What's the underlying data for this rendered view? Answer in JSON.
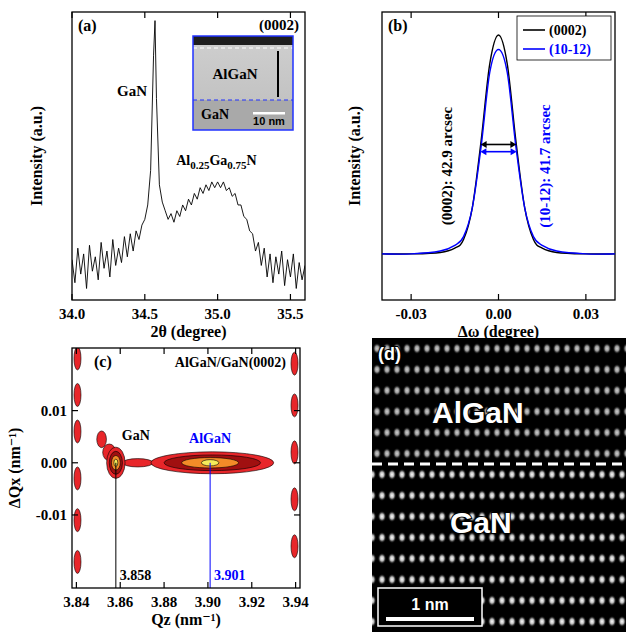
{
  "chart_data": [
    {
      "type": "line",
      "panel_label": "(a)",
      "title": "(0002)",
      "x_label": "2θ (degree)",
      "y_label": "Intensity (a.u.)",
      "xlim": [
        34.0,
        35.6
      ],
      "xticks": [
        {
          "value": 34,
          "label": "34.0"
        },
        34.5,
        {
          "value": 35,
          "label": "35.0"
        },
        35.5
      ],
      "ylim": [
        0,
        100
      ],
      "tick_labels": "x",
      "color": "#000000",
      "x": [
        34.0,
        34.02,
        34.04,
        34.06,
        34.08,
        34.1,
        34.12,
        34.14,
        34.16,
        34.18,
        34.2,
        34.22,
        34.24,
        34.26,
        34.28,
        34.3,
        34.32,
        34.34,
        34.36,
        34.38,
        34.4,
        34.42,
        34.44,
        34.46,
        34.48,
        34.5,
        34.52,
        34.54,
        34.56,
        34.57,
        34.58,
        34.6,
        34.62,
        34.64,
        34.66,
        34.68,
        34.7,
        34.72,
        34.74,
        34.76,
        34.78,
        34.8,
        34.82,
        34.84,
        34.86,
        34.88,
        34.9,
        34.92,
        34.94,
        34.96,
        34.98,
        35.0,
        35.02,
        35.04,
        35.06,
        35.08,
        35.1,
        35.12,
        35.14,
        35.16,
        35.18,
        35.2,
        35.22,
        35.24,
        35.26,
        35.28,
        35.3,
        35.32,
        35.34,
        35.36,
        35.38,
        35.4,
        35.42,
        35.44,
        35.46,
        35.48,
        35.5,
        35.52,
        35.54,
        35.56,
        35.58,
        35.6
      ],
      "values": [
        14,
        6,
        18,
        9,
        16,
        4,
        19,
        10,
        15,
        7,
        20,
        11,
        17,
        8,
        21,
        12,
        18,
        13,
        22,
        15,
        23,
        17,
        24,
        21,
        26,
        28,
        33,
        45,
        85,
        97,
        70,
        40,
        34,
        31,
        28,
        30,
        27,
        31,
        29,
        33,
        31,
        35,
        33,
        37,
        35,
        39,
        37,
        40,
        38,
        41,
        39,
        41,
        39,
        41,
        38,
        39,
        36,
        37,
        33,
        33,
        29,
        28,
        24,
        23,
        17,
        20,
        12,
        18,
        8,
        16,
        6,
        15,
        9,
        17,
        5,
        14,
        8,
        16,
        4,
        13,
        7,
        12
      ],
      "peak_labels": [
        "GaN",
        "Al0.25Ga0.75N"
      ],
      "inset": {
        "labels": [
          "AlGaN",
          "GaN"
        ],
        "scale_bar": "10 nm"
      }
    },
    {
      "type": "line",
      "panel_label": "(b)",
      "x_label": "Δω (degree)",
      "y_label": "Intensity (a.u.)",
      "xlim": [
        -0.04,
        0.04
      ],
      "xticks": [
        -0.03,
        {
          "value": 0,
          "label": "0.00"
        },
        0.03
      ],
      "ylim": [
        0,
        100
      ],
      "tick_labels": "x",
      "legend": "upper right",
      "x": [
        -0.04,
        -0.03,
        -0.02,
        -0.015,
        -0.012,
        -0.009,
        -0.006,
        -0.003,
        0,
        0.003,
        0.006,
        0.009,
        0.012,
        0.015,
        0.02,
        0.03,
        0.04
      ],
      "series": [
        {
          "name": "(0002)",
          "color": "#000000",
          "values": [
            16,
            16,
            16.5,
            18,
            21,
            32,
            55,
            82,
            92,
            82,
            55,
            32,
            21,
            18,
            16.5,
            16,
            16
          ]
        },
        {
          "name": "(10-12)",
          "color": "#0000ff",
          "values": [
            16,
            16,
            17,
            19,
            22,
            32,
            53,
            79,
            87,
            79,
            53,
            32,
            22,
            19,
            17,
            16,
            16
          ]
        }
      ],
      "fwhm_labels": [
        "(0002): 42.9 arcsec",
        "(10-12): 41.7 arcsec"
      ]
    },
    {
      "type": "contour",
      "panel_label": "(c)",
      "title": "AlGaN/GaN(0002)",
      "x_label": "Qz (nm⁻¹)",
      "y_label": "ΔQx (nm⁻¹)",
      "xlim": [
        3.838,
        3.942
      ],
      "xticks": [
        3.84,
        3.86,
        3.88,
        {
          "value": 3.9,
          "label": "3.90"
        },
        3.92,
        3.94
      ],
      "ylim": [
        -0.024,
        0.022
      ],
      "yticks": [
        -0.01,
        {
          "value": 0,
          "label": "0.00"
        },
        0.01
      ],
      "colors": [
        "#e8262a",
        "#a01010",
        "#f28c28",
        "#f6ec5a"
      ],
      "contours": [
        {
          "x": 3.8515,
          "y": 0.0045,
          "rx": 0.0022,
          "ry": 0.0016,
          "level": 0
        },
        {
          "x": 3.855,
          "y": 0.002,
          "rx": 0.003,
          "ry": 0.0016,
          "level": 0
        },
        {
          "x": 3.868,
          "y": 0,
          "rx": 0.007,
          "ry": 0.0008,
          "level": 0
        },
        {
          "x": 3.858,
          "y": 0,
          "rx": 0.0042,
          "ry": 0.003,
          "level": 0
        },
        {
          "x": 3.858,
          "y": 0,
          "rx": 0.003,
          "ry": 0.0022,
          "level": 1
        },
        {
          "x": 3.858,
          "y": 0,
          "rx": 0.002,
          "ry": 0.0014,
          "level": 2
        },
        {
          "x": 3.858,
          "y": 0,
          "rx": 0.0009,
          "ry": 0.0007,
          "level": 3
        },
        {
          "x": 3.902,
          "y": 0,
          "rx": 0.028,
          "ry": 0.0021,
          "level": 0
        },
        {
          "x": 3.902,
          "y": 0,
          "rx": 0.022,
          "ry": 0.0015,
          "level": 1
        },
        {
          "x": 3.901,
          "y": 0,
          "rx": 0.013,
          "ry": 0.001,
          "level": 2
        },
        {
          "x": 3.901,
          "y": 0,
          "rx": 0.004,
          "ry": 0.0006,
          "level": 3
        },
        {
          "x": 3.8405,
          "y": 0.02,
          "rx": 0.0016,
          "ry": 0.0022,
          "level": 0
        },
        {
          "x": 3.8405,
          "y": 0.013,
          "rx": 0.0016,
          "ry": 0.0022,
          "level": 0
        },
        {
          "x": 3.8405,
          "y": 0.006,
          "rx": 0.0016,
          "ry": 0.0022,
          "level": 0
        },
        {
          "x": 3.8405,
          "y": -0.003,
          "rx": 0.0016,
          "ry": 0.0022,
          "level": 0
        },
        {
          "x": 3.8405,
          "y": -0.011,
          "rx": 0.0016,
          "ry": 0.0022,
          "level": 0
        },
        {
          "x": 3.8405,
          "y": -0.019,
          "rx": 0.0016,
          "ry": 0.0022,
          "level": 0
        },
        {
          "x": 3.9395,
          "y": 0.019,
          "rx": 0.0016,
          "ry": 0.0022,
          "level": 0
        },
        {
          "x": 3.9395,
          "y": 0.011,
          "rx": 0.0016,
          "ry": 0.0022,
          "level": 0
        },
        {
          "x": 3.9395,
          "y": 0.002,
          "rx": 0.0016,
          "ry": 0.0022,
          "level": 0
        },
        {
          "x": 3.9395,
          "y": -0.007,
          "rx": 0.0016,
          "ry": 0.0022,
          "level": 0
        },
        {
          "x": 3.9395,
          "y": -0.016,
          "rx": 0.0016,
          "ry": 0.0022,
          "level": 0
        }
      ],
      "reference_lines": [
        3.858,
        3.901
      ],
      "reference_colors": [
        "#000000",
        "#0000ff"
      ],
      "peak_labels": [
        "GaN",
        "AlGaN"
      ]
    },
    {
      "type": "image",
      "panel_label": "(d)",
      "annotations": [
        "AlGaN",
        "GaN"
      ],
      "scale_bar": "1 nm"
    }
  ]
}
